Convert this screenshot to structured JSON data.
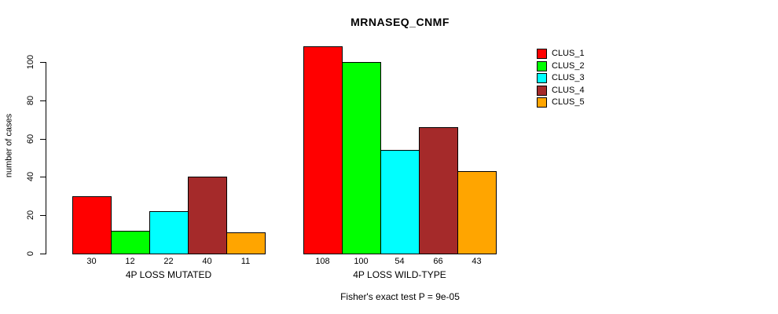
{
  "chart_data": {
    "type": "bar",
    "title": "MRNASEQ_CNMF",
    "ylabel": "number of cases",
    "xlabel": "",
    "ylim": [
      0,
      110
    ],
    "yticks": [
      0,
      20,
      40,
      60,
      80,
      100
    ],
    "grid": false,
    "legend_position": "right",
    "bar_value_labels": true,
    "categories": [
      "4P LOSS MUTATED",
      "4P LOSS WILD-TYPE"
    ],
    "series": [
      {
        "name": "CLUS_1",
        "color": "#FF0000",
        "values": [
          30,
          108
        ]
      },
      {
        "name": "CLUS_2",
        "color": "#00FF00",
        "values": [
          12,
          100
        ]
      },
      {
        "name": "CLUS_3",
        "color": "#00FFFF",
        "values": [
          22,
          54
        ]
      },
      {
        "name": "CLUS_4",
        "color": "#A52A2A",
        "values": [
          40,
          66
        ]
      },
      {
        "name": "CLUS_5",
        "color": "#FFA500",
        "values": [
          11,
          43
        ]
      }
    ],
    "annotation": "Fisher's exact test P = 9e-05"
  }
}
